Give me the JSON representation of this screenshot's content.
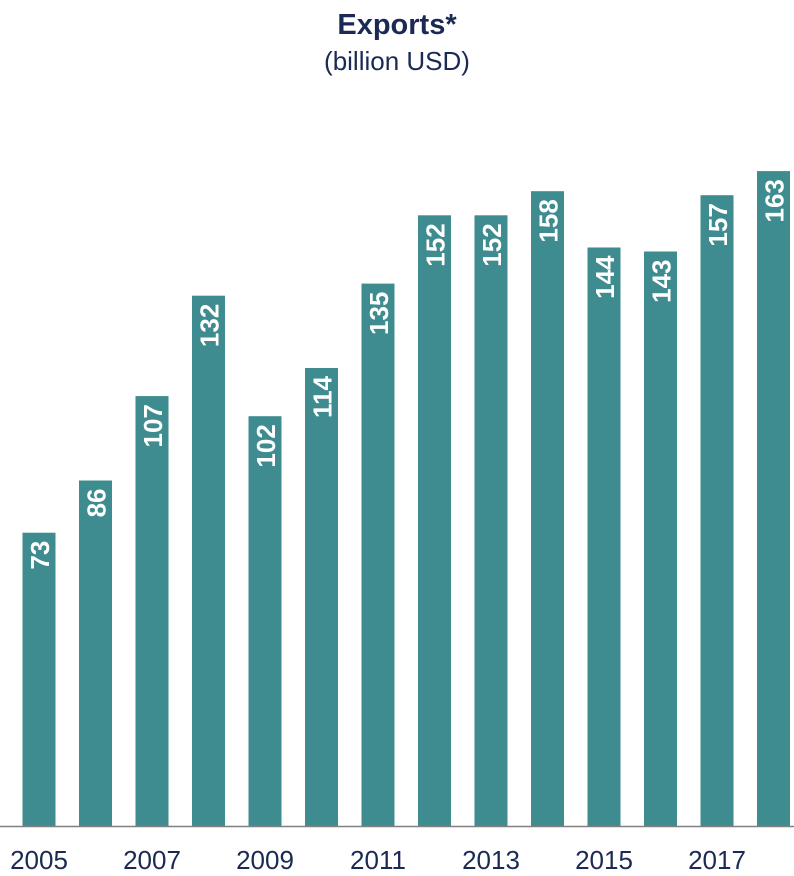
{
  "chart_data": {
    "type": "bar",
    "title": "Exports*",
    "subtitle": "(billion USD)",
    "xlabel": "",
    "ylabel": "",
    "categories": [
      "2005",
      "2006",
      "2007",
      "2008",
      "2009",
      "2010",
      "2011",
      "2012",
      "2013",
      "2014",
      "2015",
      "2016",
      "2017",
      "2018"
    ],
    "values": [
      73,
      86,
      107,
      132,
      102,
      114,
      135,
      152,
      152,
      158,
      144,
      143,
      157,
      163
    ],
    "x_tick_labels": [
      "2005",
      "",
      "2007",
      "",
      "2009",
      "",
      "2011",
      "",
      "2013",
      "",
      "2015",
      "",
      "2017",
      ""
    ],
    "ylim": [
      0,
      171
    ],
    "grid": false,
    "legend": "none",
    "data_labels": "inside-top-rotated",
    "colors": {
      "bar": "#3e8c8f",
      "label": "#ffffff",
      "title": "#1b2a55",
      "axis": "#808080"
    }
  }
}
